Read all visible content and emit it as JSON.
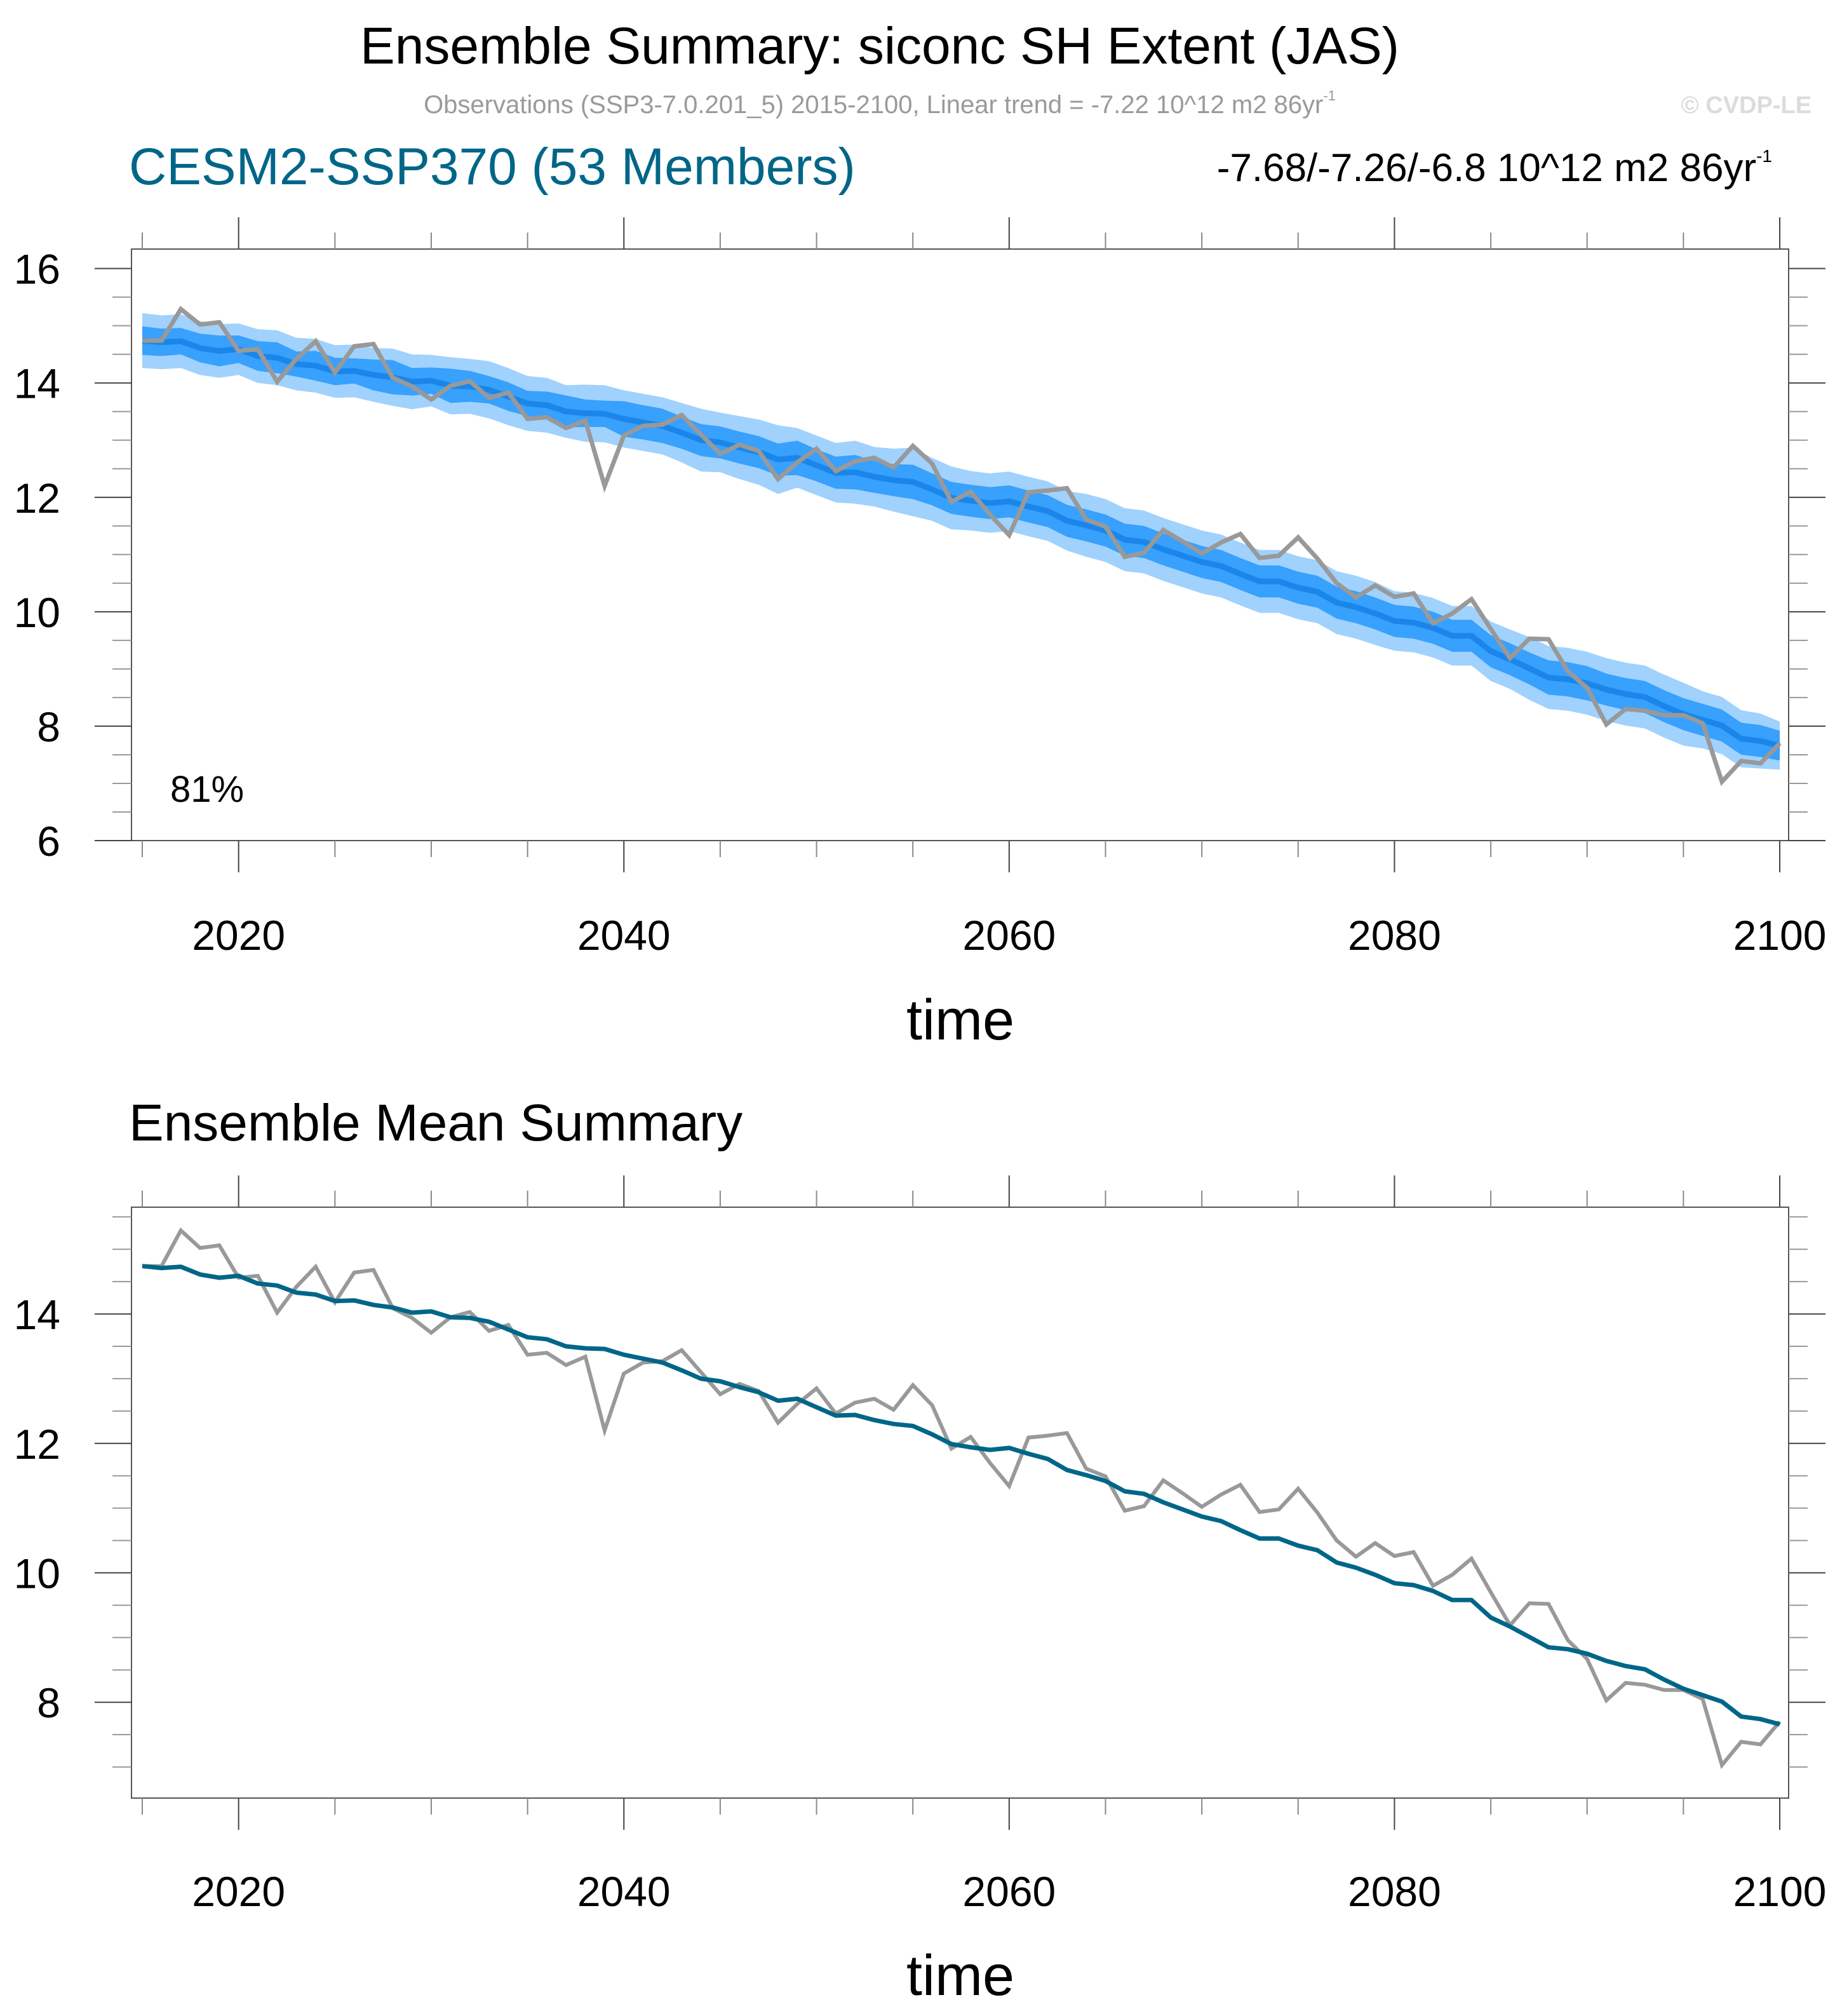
{
  "header": {
    "title": "Ensemble Summary: siconc SH Extent (JAS)",
    "subtitle": "Observations (SSP3-7.0.201_5) 2015-2100, Linear trend = -7.22 10^12 m2 86yr",
    "subtitle_sup": "-1",
    "copyright": "© CVDP-LE",
    "model_label": "CESM2-SSP370 (53 Members)",
    "trend_label": "-7.68/-7.26/-6.8 10^12 m2 86yr",
    "trend_sup": "-1"
  },
  "colors": {
    "model": "#006688",
    "obs": "#999999",
    "ens_mean_top": "#1a86ea",
    "inner_band": "#38a0fd",
    "outer_band": "#a0d2fd",
    "ens_mean_bottom": "#006688",
    "frame": "#555555"
  },
  "chart_data": [
    {
      "type": "area",
      "panel": "top",
      "title": "CESM2-SSP370 (53 Members)",
      "xlabel": "time",
      "ylabel": "",
      "xlim": [
        2015,
        2100
      ],
      "ylim": [
        6,
        16.34
      ],
      "xticks": [
        2020,
        2040,
        2060,
        2080,
        2100
      ],
      "yticks": [
        6,
        8,
        10,
        12,
        14,
        16
      ],
      "annotation": "81%",
      "grid": false,
      "legend": "none",
      "series": [
        {
          "name": "Ensemble 10-90% range",
          "kind": "band",
          "half_width": [
            0.48,
            0.47,
            0.47,
            0.47,
            0.47,
            0.45,
            0.47,
            0.48,
            0.46,
            0.47,
            0.46,
            0.46,
            0.47,
            0.5,
            0.48,
            0.45,
            0.5,
            0.48,
            0.5,
            0.5,
            0.48,
            0.48,
            0.46,
            0.5,
            0.5,
            0.5,
            0.5,
            0.5,
            0.52,
            0.55,
            0.52,
            0.55,
            0.57,
            0.6,
            0.52,
            0.52,
            0.52,
            0.55,
            0.52,
            0.55,
            0.6,
            0.55,
            0.55,
            0.52,
            0.52,
            0.52,
            0.52,
            0.52,
            0.52,
            0.55,
            0.55,
            0.55,
            0.55,
            0.55,
            0.55,
            0.55,
            0.55,
            0.55,
            0.55,
            0.55,
            0.55,
            0.55,
            0.55,
            0.55,
            0.55,
            0.52,
            0.52,
            0.52,
            0.52,
            0.52,
            0.52,
            0.52,
            0.55,
            0.55,
            0.55,
            0.55,
            0.55,
            0.55,
            0.55,
            0.55,
            0.55,
            0.5,
            0.5,
            0.5,
            0.48,
            0.42
          ]
        },
        {
          "name": "Ensemble 25-75% range",
          "kind": "band",
          "half_width": [
            0.25,
            0.24,
            0.23,
            0.25,
            0.27,
            0.24,
            0.26,
            0.27,
            0.22,
            0.26,
            0.24,
            0.22,
            0.27,
            0.3,
            0.24,
            0.23,
            0.3,
            0.27,
            0.24,
            0.25,
            0.22,
            0.24,
            0.28,
            0.24,
            0.23,
            0.31,
            0.3,
            0.3,
            0.28,
            0.28,
            0.28,
            0.28,
            0.28,
            0.28,
            0.3,
            0.28,
            0.28,
            0.3,
            0.28,
            0.28,
            0.3,
            0.28,
            0.28,
            0.28,
            0.28,
            0.28,
            0.28,
            0.28,
            0.28,
            0.28,
            0.28,
            0.28,
            0.28,
            0.28,
            0.28,
            0.28,
            0.28,
            0.28,
            0.28,
            0.28,
            0.28,
            0.28,
            0.28,
            0.28,
            0.28,
            0.28,
            0.28,
            0.28,
            0.28,
            0.28,
            0.28,
            0.28,
            0.28,
            0.3,
            0.3,
            0.3,
            0.28,
            0.28,
            0.28,
            0.28,
            0.28,
            0.28,
            0.28,
            0.28,
            0.28,
            0.26
          ]
        },
        {
          "name": "Ensemble mean",
          "kind": "line",
          "ref": "ensemble_mean"
        },
        {
          "name": "Observations (SSP3-7.0.201_5)",
          "kind": "line",
          "ref": "observations"
        }
      ]
    },
    {
      "type": "line",
      "panel": "bottom",
      "title": "Ensemble Mean Summary",
      "xlabel": "time",
      "ylabel": "",
      "xlim": [
        2015,
        2100
      ],
      "ylim": [
        6.52,
        15.65
      ],
      "xticks": [
        2020,
        2040,
        2060,
        2080,
        2100
      ],
      "yticks": [
        8,
        10,
        12,
        14
      ],
      "grid": false,
      "legend": "none",
      "series": [
        {
          "name": "Ensemble mean",
          "ref": "ensemble_mean"
        },
        {
          "name": "Observations (SSP3-7.0.201_5)",
          "ref": "observations"
        }
      ]
    }
  ],
  "years_start": 2015,
  "years_end": 2100,
  "ensemble_mean": [
    14.74,
    14.71,
    14.73,
    14.61,
    14.56,
    14.59,
    14.47,
    14.44,
    14.33,
    14.3,
    14.2,
    14.21,
    14.14,
    14.1,
    14.02,
    14.04,
    13.95,
    13.94,
    13.88,
    13.76,
    13.64,
    13.61,
    13.5,
    13.47,
    13.46,
    13.37,
    13.31,
    13.25,
    13.13,
    13.0,
    12.96,
    12.87,
    12.79,
    12.66,
    12.69,
    12.56,
    12.43,
    12.44,
    12.36,
    12.3,
    12.27,
    12.14,
    11.99,
    11.94,
    11.9,
    11.93,
    11.84,
    11.76,
    11.59,
    11.51,
    11.42,
    11.26,
    11.22,
    11.09,
    10.98,
    10.87,
    10.8,
    10.66,
    10.53,
    10.53,
    10.42,
    10.35,
    10.16,
    10.08,
    9.97,
    9.84,
    9.81,
    9.72,
    9.58,
    9.58,
    9.31,
    9.17,
    9.01,
    8.85,
    8.82,
    8.75,
    8.64,
    8.56,
    8.51,
    8.35,
    8.21,
    8.11,
    8.01,
    7.78,
    7.74,
    7.66
  ],
  "observations": [
    14.74,
    14.74,
    15.29,
    15.02,
    15.06,
    14.56,
    14.59,
    14.02,
    14.42,
    14.73,
    14.18,
    14.64,
    14.68,
    14.09,
    13.94,
    13.71,
    13.95,
    14.03,
    13.74,
    13.83,
    13.37,
    13.4,
    13.21,
    13.34,
    12.2,
    13.08,
    13.25,
    13.27,
    13.44,
    13.1,
    12.76,
    12.92,
    12.81,
    12.32,
    12.61,
    12.85,
    12.46,
    12.63,
    12.69,
    12.52,
    12.9,
    12.59,
    11.92,
    12.1,
    11.7,
    11.34,
    12.09,
    12.12,
    12.16,
    11.61,
    11.49,
    10.96,
    11.03,
    11.43,
    11.23,
    11.02,
    11.21,
    11.36,
    10.94,
    10.98,
    11.3,
    10.93,
    10.5,
    10.25,
    10.46,
    10.26,
    10.32,
    9.8,
    9.97,
    10.22,
    9.7,
    9.19,
    9.53,
    9.52,
    8.96,
    8.67,
    8.03,
    8.3,
    8.27,
    8.19,
    8.19,
    8.05,
    7.03,
    7.39,
    7.35,
    7.7
  ]
}
